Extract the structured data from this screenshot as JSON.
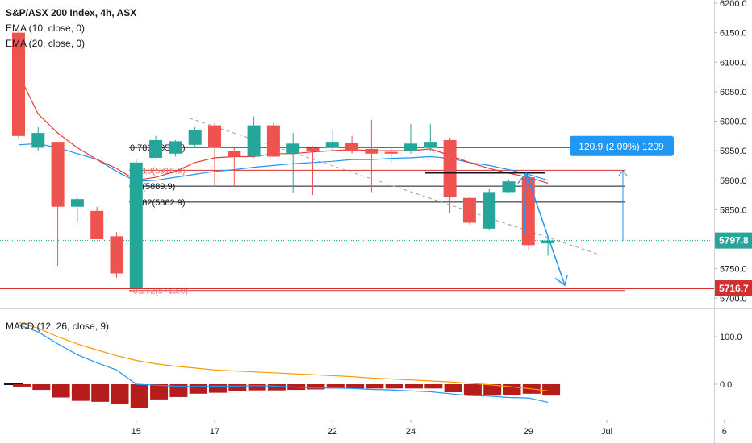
{
  "header": {
    "title": "S&P/ASX 200 Index, 4h, ASX",
    "ema10_label": "EMA (10, close, 0)",
    "ema20_label": "EMA (20, close, 0)",
    "macd_label": "MACD (12, 26, close, 9)"
  },
  "colors": {
    "up": "#26a69a",
    "down": "#ef5350",
    "ema10": "#e53935",
    "ema20": "#2196f3",
    "macd_line": "#2196f3",
    "signal_line": "#ff9800",
    "hist": "#b71c1c",
    "support": "#d32f2f",
    "measure_fill": "#2196f3"
  },
  "chart_data": [
    {
      "type": "candlestick",
      "title": "S&P/ASX 200 Index, 4h, ASX",
      "ylim": [
        5680,
        6210
      ],
      "y_ticks": [
        "6200.0",
        "6150.0",
        "6100.0",
        "6050.0",
        "6000.0",
        "5950.0",
        "5900.0",
        "5850.0",
        "5800.0",
        "5750.0",
        "5700.0"
      ],
      "x_ticks": [
        {
          "label": "15",
          "bar": 6
        },
        {
          "label": "17",
          "bar": 10
        },
        {
          "label": "22",
          "bar": 16
        },
        {
          "label": "24",
          "bar": 20
        },
        {
          "label": "29",
          "bar": 26
        },
        {
          "label": "Jul",
          "bar": 30
        },
        {
          "label": "6",
          "bar": 36
        }
      ],
      "candles": [
        {
          "o": 6150,
          "h": 6155,
          "l": 5970,
          "c": 5975
        },
        {
          "o": 5955,
          "h": 5990,
          "l": 5950,
          "c": 5980
        },
        {
          "o": 5965,
          "h": 5965,
          "l": 5755,
          "c": 5855
        },
        {
          "o": 5855,
          "h": 5870,
          "l": 5830,
          "c": 5868
        },
        {
          "o": 5848,
          "h": 5855,
          "l": 5800,
          "c": 5800
        },
        {
          "o": 5805,
          "h": 5812,
          "l": 5735,
          "c": 5742
        },
        {
          "o": 5718,
          "h": 5935,
          "l": 5715,
          "c": 5930
        },
        {
          "o": 5938,
          "h": 5975,
          "l": 5937,
          "c": 5968
        },
        {
          "o": 5945,
          "h": 5968,
          "l": 5940,
          "c": 5966
        },
        {
          "o": 5960,
          "h": 5990,
          "l": 5955,
          "c": 5985
        },
        {
          "o": 5993,
          "h": 5996,
          "l": 5890,
          "c": 5955
        },
        {
          "o": 5950,
          "h": 5955,
          "l": 5890,
          "c": 5940
        },
        {
          "o": 5940,
          "h": 6008,
          "l": 5938,
          "c": 5993
        },
        {
          "o": 5993,
          "h": 5997,
          "l": 5940,
          "c": 5940
        },
        {
          "o": 5945,
          "h": 5980,
          "l": 5878,
          "c": 5962
        },
        {
          "o": 5955,
          "h": 5958,
          "l": 5875,
          "c": 5950
        },
        {
          "o": 5955,
          "h": 5985,
          "l": 5950,
          "c": 5965
        },
        {
          "o": 5963,
          "h": 5975,
          "l": 5945,
          "c": 5950
        },
        {
          "o": 5953,
          "h": 6002,
          "l": 5880,
          "c": 5945
        },
        {
          "o": 5948,
          "h": 5958,
          "l": 5930,
          "c": 5945
        },
        {
          "o": 5950,
          "h": 5995,
          "l": 5945,
          "c": 5962
        },
        {
          "o": 5955,
          "h": 5995,
          "l": 5950,
          "c": 5965
        },
        {
          "o": 5968,
          "h": 5972,
          "l": 5845,
          "c": 5872
        },
        {
          "o": 5870,
          "h": 5872,
          "l": 5825,
          "c": 5828
        },
        {
          "o": 5818,
          "h": 5885,
          "l": 5815,
          "c": 5880
        },
        {
          "o": 5880,
          "h": 5900,
          "l": 5878,
          "c": 5898
        },
        {
          "o": 5905,
          "h": 5907,
          "l": 5780,
          "c": 5790
        },
        {
          "o": 5793,
          "h": 5802,
          "l": 5772,
          "c": 5798
        }
      ],
      "ema10": [
        6080,
        6012,
        5980,
        5955,
        5935,
        5920,
        5900,
        5905,
        5915,
        5930,
        5938,
        5940,
        5940,
        5945,
        5945,
        5948,
        5950,
        5952,
        5950,
        5950,
        5950,
        5953,
        5942,
        5930,
        5920,
        5912,
        5905,
        5895
      ],
      "ema20": [
        5960,
        5962,
        5955,
        5945,
        5935,
        5915,
        5898,
        5900,
        5905,
        5910,
        5915,
        5918,
        5922,
        5925,
        5928,
        5930,
        5932,
        5935,
        5935,
        5937,
        5938,
        5940,
        5937,
        5930,
        5925,
        5918,
        5910,
        5900
      ],
      "last_price": "5797.8",
      "support_price": "5716.7",
      "fib_levels": [
        {
          "label": "0.786(5955.4)",
          "value": 5955.4
        },
        {
          "label": "0.618(5916.9)",
          "value": 5916.9
        },
        {
          "label": "0.5(5889.9)",
          "value": 5889.9
        },
        {
          "label": "0.382(5862.9)",
          "value": 5862.9
        },
        {
          "label": "-0.272(5713.0)",
          "value": 5713.0
        }
      ],
      "measure_label": "120.9 (2.09%) 1209"
    },
    {
      "type": "macd",
      "title": "MACD (12, 26, close, 9)",
      "ylim": [
        -55,
        135
      ],
      "y_ticks": [
        "100.0",
        "0.0"
      ],
      "macd": [
        125,
        110,
        85,
        62,
        45,
        30,
        0,
        -2,
        -4,
        -5,
        -4,
        -4,
        -3,
        -4,
        -6,
        -8,
        -8,
        -9,
        -11,
        -12,
        -14,
        -16,
        -20,
        -24,
        -25,
        -28,
        -29,
        -38
      ],
      "signal": [
        130,
        118,
        100,
        85,
        72,
        60,
        50,
        43,
        38,
        34,
        30,
        28,
        26,
        24,
        22,
        20,
        18,
        16,
        13,
        11,
        9,
        7,
        5,
        2,
        -1,
        -5,
        -9,
        -14
      ],
      "histogram": [
        -5,
        -12,
        -28,
        -35,
        -37,
        -42,
        -50,
        -32,
        -27,
        -20,
        -18,
        -15,
        -13,
        -13,
        -12,
        -11,
        -9,
        -9,
        -9,
        -9,
        -9,
        -9,
        -17,
        -23,
        -24,
        -23,
        -20,
        -24
      ]
    }
  ]
}
